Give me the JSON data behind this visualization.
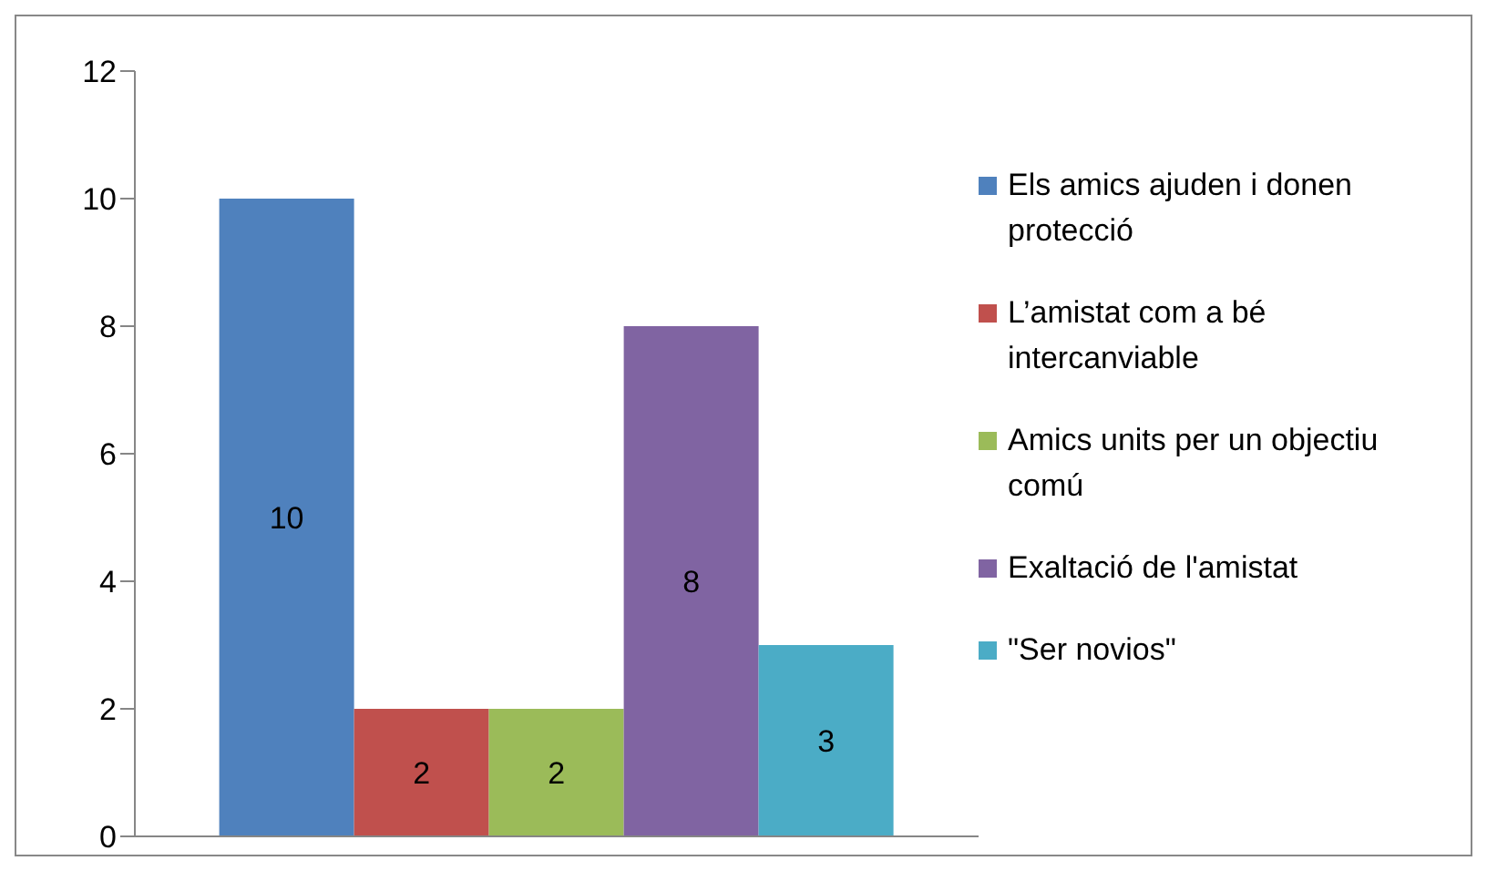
{
  "chart_data": {
    "type": "bar",
    "categories": [
      null
    ],
    "series": [
      {
        "name": "Els amics ajuden i donen protecció",
        "color": "#4f81bd",
        "values": [
          10
        ]
      },
      {
        "name": "L’amistat com a bé intercanviable",
        "color": "#c0504d",
        "values": [
          2
        ]
      },
      {
        "name": "Amics units per un objectiu comú",
        "color": "#9bbb59",
        "values": [
          2
        ]
      },
      {
        "name": "Exaltació de l'amistat",
        "color": "#8064a2",
        "values": [
          8
        ]
      },
      {
        "name": "\"Ser novios\"",
        "color": "#4bacc6",
        "values": [
          3
        ]
      }
    ],
    "ylim": [
      0,
      12
    ],
    "yticks": [
      0,
      2,
      4,
      6,
      8,
      10,
      12
    ],
    "grid": false,
    "legend": "right",
    "data_labels": true
  }
}
